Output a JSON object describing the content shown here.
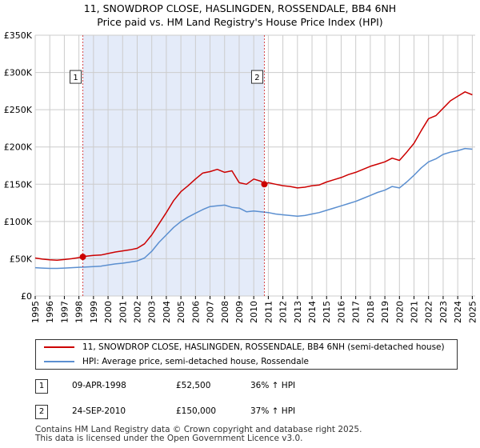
{
  "title_line1": "11, SNOWDROP CLOSE, HASLINGDEN, ROSSENDALE, BB4 6NH",
  "title_line2": "Price paid vs. HM Land Registry's House Price Index (HPI)",
  "colors": {
    "property": "#cc0000",
    "hpi": "#5b8fd0",
    "shade": "#dde6f7",
    "grid": "#cccccc"
  },
  "chart_data": {
    "type": "line",
    "title": "Price paid vs. HM Land Registry's House Price Index (HPI)",
    "xlabel": "",
    "ylabel": "",
    "xlim": [
      1995,
      2025.2
    ],
    "ylim": [
      0,
      350000
    ],
    "x_ticks": [
      1995,
      1996,
      1997,
      1998,
      1999,
      2000,
      2001,
      2002,
      2003,
      2004,
      2005,
      2006,
      2007,
      2008,
      2009,
      2010,
      2011,
      2012,
      2013,
      2014,
      2015,
      2016,
      2017,
      2018,
      2019,
      2020,
      2021,
      2022,
      2023,
      2024,
      2025
    ],
    "y_ticks": [
      {
        "value": 0,
        "label": "£0"
      },
      {
        "value": 50000,
        "label": "£50K"
      },
      {
        "value": 100000,
        "label": "£100K"
      },
      {
        "value": 150000,
        "label": "£150K"
      },
      {
        "value": 200000,
        "label": "£200K"
      },
      {
        "value": 250000,
        "label": "£250K"
      },
      {
        "value": 300000,
        "label": "£300K"
      },
      {
        "value": 350000,
        "label": "£350K"
      }
    ],
    "shaded_region": [
      1998.27,
      2010.73
    ],
    "series": [
      {
        "name": "11, SNOWDROP CLOSE, HASLINGDEN, ROSSENDALE, BB4 6NH (semi-detached house)",
        "color": "#cc0000",
        "x": [
          1995,
          1995.5,
          1996,
          1996.5,
          1997,
          1997.5,
          1998,
          1998.27,
          1998.5,
          1999,
          1999.5,
          2000,
          2000.5,
          2001,
          2001.5,
          2002,
          2002.5,
          2003,
          2003.5,
          2004,
          2004.5,
          2005,
          2005.5,
          2006,
          2006.5,
          2007,
          2007.5,
          2008,
          2008.5,
          2009,
          2009.5,
          2010,
          2010.5,
          2010.73,
          2011,
          2011.5,
          2012,
          2012.5,
          2013,
          2013.5,
          2014,
          2014.5,
          2015,
          2015.5,
          2016,
          2016.5,
          2017,
          2017.5,
          2018,
          2018.5,
          2019,
          2019.5,
          2020,
          2020.5,
          2021,
          2021.5,
          2022,
          2022.5,
          2023,
          2023.5,
          2024,
          2024.5,
          2025
        ],
        "y": [
          51000,
          49500,
          48500,
          48000,
          49000,
          50000,
          51500,
          52500,
          53500,
          54500,
          55000,
          57000,
          59000,
          60500,
          62000,
          64000,
          70000,
          82000,
          97000,
          112000,
          128000,
          140000,
          148000,
          157000,
          165000,
          167000,
          170000,
          166000,
          168000,
          152000,
          150000,
          157000,
          154000,
          150000,
          152000,
          150000,
          148000,
          147000,
          145000,
          146000,
          148000,
          149000,
          153000,
          156000,
          159000,
          163000,
          166000,
          170000,
          174000,
          177000,
          180000,
          185000,
          182000,
          193000,
          205000,
          222000,
          238000,
          242000,
          252000,
          262000,
          268000,
          274000,
          270000
        ]
      },
      {
        "name": "HPI: Average price, semi-detached house, Rossendale",
        "color": "#5b8fd0",
        "x": [
          1995,
          1995.5,
          1996,
          1996.5,
          1997,
          1997.5,
          1998,
          1998.5,
          1999,
          1999.5,
          2000,
          2000.5,
          2001,
          2001.5,
          2002,
          2002.5,
          2003,
          2003.5,
          2004,
          2004.5,
          2005,
          2005.5,
          2006,
          2006.5,
          2007,
          2007.5,
          2008,
          2008.5,
          2009,
          2009.5,
          2010,
          2010.5,
          2011,
          2011.5,
          2012,
          2012.5,
          2013,
          2013.5,
          2014,
          2014.5,
          2015,
          2015.5,
          2016,
          2016.5,
          2017,
          2017.5,
          2018,
          2018.5,
          2019,
          2019.5,
          2020,
          2020.5,
          2021,
          2021.5,
          2022,
          2022.5,
          2023,
          2023.5,
          2024,
          2024.5,
          2025
        ],
        "y": [
          38000,
          37500,
          37000,
          37000,
          37500,
          38000,
          38500,
          39000,
          39500,
          40000,
          41500,
          43000,
          44000,
          45500,
          47000,
          51000,
          60000,
          72000,
          82000,
          92000,
          100000,
          106000,
          111000,
          116000,
          120000,
          121000,
          122000,
          119000,
          118000,
          113000,
          114000,
          113000,
          112000,
          110000,
          109000,
          108000,
          107000,
          108000,
          110000,
          112000,
          115000,
          118000,
          121000,
          124000,
          127000,
          131000,
          135000,
          139000,
          142000,
          147000,
          145000,
          153000,
          162000,
          172000,
          180000,
          184000,
          190000,
          193000,
          195000,
          198000,
          197000
        ]
      }
    ],
    "markers": [
      {
        "label": "1",
        "x": 1998.27,
        "y": 52500,
        "label_y": 293000
      },
      {
        "label": "2",
        "x": 2010.73,
        "y": 150000,
        "label_y": 293000
      }
    ]
  },
  "legend": {
    "property_label": "11, SNOWDROP CLOSE, HASLINGDEN, ROSSENDALE, BB4 6NH (semi-detached house)",
    "hpi_label": "HPI: Average price, semi-detached house, Rossendale"
  },
  "transactions": [
    {
      "num": "1",
      "date": "09-APR-1998",
      "price": "£52,500",
      "hpi": "36% ↑ HPI"
    },
    {
      "num": "2",
      "date": "24-SEP-2010",
      "price": "£150,000",
      "hpi": "37% ↑ HPI"
    }
  ],
  "footer": {
    "line1": "Contains HM Land Registry data © Crown copyright and database right 2025.",
    "line2": "This data is licensed under the Open Government Licence v3.0."
  }
}
